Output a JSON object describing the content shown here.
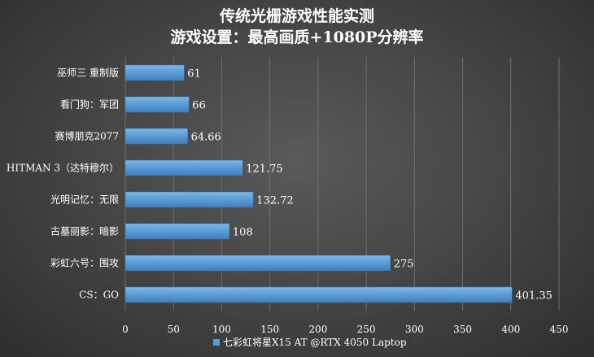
{
  "chart_data": {
    "type": "bar",
    "orientation": "horizontal",
    "title": "传统光栅游戏性能实测",
    "subtitle": "游戏设置：最高画质+1080P分辨率",
    "categories": [
      "巫师三 重制版",
      "看门狗：军团",
      "赛博朋克2077",
      "HITMAN 3（达特穆尔）",
      "光明记忆：无限",
      "古墓丽影：暗影",
      "彩虹六号：围攻",
      "CS：GO"
    ],
    "series": [
      {
        "name": "七彩虹将星X15 AT @RTX 4050 Laptop",
        "values": [
          61,
          66,
          64.66,
          121.75,
          132.72,
          108,
          275,
          401.35
        ],
        "value_labels": [
          "61",
          "66",
          "64.66",
          "121.75",
          "132.72",
          "108",
          "275",
          "401.35"
        ],
        "color": "#5b9bd5"
      }
    ],
    "xlim": [
      0,
      450
    ],
    "x_ticks": [
      "0",
      "50",
      "100",
      "150",
      "200",
      "250",
      "300",
      "350",
      "400",
      "450"
    ],
    "grid": true,
    "legend_position": "bottom"
  }
}
